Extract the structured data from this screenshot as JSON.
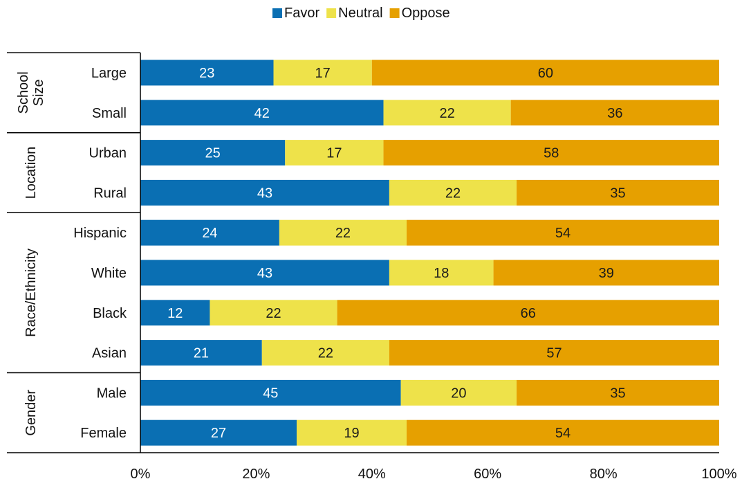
{
  "chart_data": {
    "type": "bar",
    "orientation": "horizontal",
    "stacked": true,
    "legend_position": "top",
    "grid": false,
    "xlim": [
      0,
      100
    ],
    "x_tick_labels": [
      "0%",
      "20%",
      "40%",
      "60%",
      "80%",
      "100%"
    ],
    "groups": [
      {
        "label": "School Size",
        "lines": [
          "School",
          "Size"
        ],
        "categories": [
          "Large",
          "Small"
        ]
      },
      {
        "label": "Location",
        "lines": [
          "Location"
        ],
        "categories": [
          "Urban",
          "Rural"
        ]
      },
      {
        "label": "Race/Ethnicity",
        "lines": [
          "Race/Ethnicity"
        ],
        "categories": [
          "Hispanic",
          "White",
          "Black",
          "Asian"
        ]
      },
      {
        "label": "Gender",
        "lines": [
          "Gender"
        ],
        "categories": [
          "Male",
          "Female"
        ]
      }
    ],
    "categories": [
      "Large",
      "Small",
      "Urban",
      "Rural",
      "Hispanic",
      "White",
      "Black",
      "Asian",
      "Male",
      "Female"
    ],
    "series": [
      {
        "name": "Favor",
        "color": "#0A6FB3",
        "label_color": "#ffffff",
        "values": [
          23,
          42,
          25,
          43,
          24,
          43,
          12,
          21,
          45,
          27
        ]
      },
      {
        "name": "Neutral",
        "color": "#EEE24A",
        "label_color": "#1a1a1a",
        "values": [
          17,
          22,
          17,
          22,
          22,
          18,
          22,
          22,
          20,
          19
        ]
      },
      {
        "name": "Oppose",
        "color": "#E6A000",
        "label_color": "#1a1a1a",
        "values": [
          60,
          36,
          58,
          35,
          54,
          39,
          66,
          57,
          35,
          54
        ]
      }
    ]
  }
}
